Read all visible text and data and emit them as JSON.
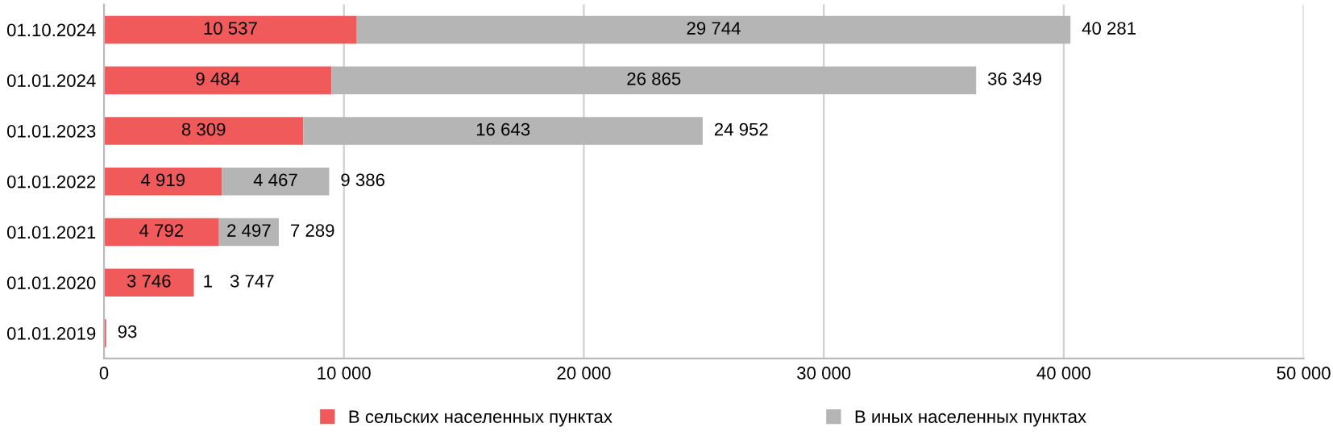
{
  "chart_data": {
    "type": "bar",
    "orientation": "horizontal",
    "stacked": true,
    "categories": [
      "01.10.2024",
      "01.01.2024",
      "01.01.2023",
      "01.01.2022",
      "01.01.2021",
      "01.01.2020",
      "01.01.2019"
    ],
    "series": [
      {
        "name": "В сельских населенных пунктах",
        "color": "#f15a5a",
        "values": [
          10537,
          9484,
          8309,
          4919,
          4792,
          3746,
          93
        ],
        "value_labels": [
          "10 537",
          "9 484",
          "8 309",
          "4 919",
          "4 792",
          "3 746",
          null
        ]
      },
      {
        "name": "В иных населенных пунктах",
        "color": "#b5b5b5",
        "values": [
          29744,
          26865,
          16643,
          4467,
          2497,
          1,
          null
        ],
        "value_labels": [
          "29 744",
          "26 865",
          "16 643",
          "4 467",
          "2 497",
          "1",
          null
        ]
      }
    ],
    "totals": [
      "40 281",
      "36 349",
      "24 952",
      "9 386",
      "7 289",
      "3 747",
      "93"
    ],
    "xlim": [
      0,
      50000
    ],
    "xticks": [
      0,
      {
        "value": 10000,
        "label": "10 000"
      },
      {
        "value": 20000,
        "label": "20 000"
      },
      {
        "value": 30000,
        "label": "30 000"
      },
      {
        "value": 40000,
        "label": "40 000"
      },
      {
        "value": 50000,
        "label": "50 000"
      }
    ],
    "grid": "x",
    "legend": "bottom"
  }
}
